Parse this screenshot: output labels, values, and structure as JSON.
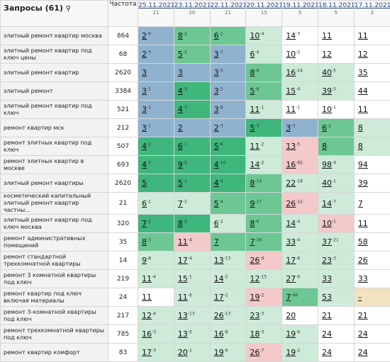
{
  "header": {
    "title": "Запросы (61)",
    "freq": "Частота",
    "dates": [
      {
        "date": "25.11.2021",
        "count": 21
      },
      {
        "date": "23.11.2021",
        "count": 20
      },
      {
        "date": "22.11.2021",
        "count": 21
      },
      {
        "date": "20.11.2021",
        "count": 15
      },
      {
        "date": "19.11.2021",
        "count": 5
      },
      {
        "date": "18.11.2021",
        "count": 5
      },
      {
        "date": "17.11.2021",
        "count": 3
      }
    ]
  },
  "rows": [
    {
      "query": "элитный ремонт квартир москва",
      "freq": 864,
      "cells": [
        {
          "pos": 2,
          "delta": "-6",
          "color": "#8fb3cf"
        },
        {
          "pos": 8,
          "delta": "-2",
          "color": "#6cc794"
        },
        {
          "pos": 6,
          "delta": "-2",
          "color": "#6cc794"
        },
        {
          "pos": 10,
          "delta": "-4",
          "color": "#cdebd8"
        },
        {
          "pos": 14,
          "delta": "-3",
          "color": "#ffffff"
        },
        {
          "pos": 11,
          "color": "#ffffff"
        },
        {
          "pos": 11,
          "color": "#ffffff"
        }
      ]
    },
    {
      "query": "элитный ремонт квартир под ключ цены",
      "freq": 68,
      "cells": [
        {
          "pos": 2,
          "delta": "-3",
          "color": "#8fb3cf"
        },
        {
          "pos": 5,
          "delta": "-2",
          "color": "#6cc794"
        },
        {
          "pos": 3,
          "delta": "-3",
          "color": "#8fb3cf"
        },
        {
          "pos": 6,
          "delta": "-4",
          "color": "#cdebd8"
        },
        {
          "pos": 10,
          "delta": "-2",
          "color": "#ffffff"
        },
        {
          "pos": 12,
          "color": "#ffffff"
        },
        {
          "pos": 12,
          "color": "#ffffff"
        }
      ]
    },
    {
      "query": "элитный ремонт квартир",
      "freq": 2620,
      "cells": [
        {
          "pos": 3,
          "color": "#8fb3cf"
        },
        {
          "pos": 3,
          "color": "#8fb3cf"
        },
        {
          "pos": 3,
          "delta": "-5",
          "color": "#8fb3cf"
        },
        {
          "pos": 8,
          "delta": "-8",
          "color": "#6cc794"
        },
        {
          "pos": 16,
          "delta": "-24",
          "color": "#cdebd8"
        },
        {
          "pos": 40,
          "delta": "-5",
          "color": "#cdebd8"
        },
        {
          "pos": 35,
          "color": "#ffffff"
        }
      ]
    },
    {
      "query": "элитный ремонт",
      "freq": 3384,
      "cells": [
        {
          "pos": 3,
          "delta": "-1",
          "color": "#8fb3cf"
        },
        {
          "pos": 4,
          "delta": "-3",
          "color": "#3fb67b"
        },
        {
          "pos": 3,
          "delta": "-2",
          "color": "#8fb3cf"
        },
        {
          "pos": 5,
          "delta": "-8",
          "color": "#6cc794"
        },
        {
          "pos": 15,
          "delta": "-4",
          "color": "#cdebd8"
        },
        {
          "pos": 39,
          "delta": "-5",
          "color": "#cdebd8"
        },
        {
          "pos": 44,
          "color": "#ffffff"
        }
      ]
    },
    {
      "query": "элитный ремонт квартир под ключ",
      "freq": 521,
      "cells": [
        {
          "pos": 3,
          "delta": "-1",
          "color": "#8fb3cf"
        },
        {
          "pos": 4,
          "delta": "-3",
          "color": "#3fb67b"
        },
        {
          "pos": 3,
          "delta": "-8",
          "color": "#8fb3cf"
        },
        {
          "pos": 11,
          "delta": "-1",
          "color": "#cdebd8"
        },
        {
          "pos": 11,
          "delta": "-1",
          "color": "#ffffff"
        },
        {
          "pos": 10,
          "delta": "-1",
          "color": "#ffffff"
        },
        {
          "pos": 11,
          "color": "#ffffff"
        }
      ]
    },
    {
      "query": "ремонт квартир мск",
      "freq": 212,
      "cells": [
        {
          "pos": 3,
          "delta": "-1",
          "color": "#8fb3cf"
        },
        {
          "pos": 2,
          "color": "#8fb3cf"
        },
        {
          "pos": 2,
          "delta": "-3",
          "color": "#8fb3cf"
        },
        {
          "pos": 5,
          "delta": "-3",
          "color": "#3fb67b"
        },
        {
          "pos": 3,
          "delta": "-3",
          "color": "#8fb3cf"
        },
        {
          "pos": 6,
          "delta": "-2",
          "color": "#6cc794"
        },
        {
          "pos": 8,
          "color": "#cdebd8"
        }
      ]
    },
    {
      "query": "ремонт элитных квартир под ключ",
      "freq": 507,
      "cells": [
        {
          "pos": 4,
          "delta": "-2",
          "color": "#3fb67b"
        },
        {
          "pos": 6,
          "delta": "-1",
          "color": "#3fb67b"
        },
        {
          "pos": 5,
          "delta": "-6",
          "color": "#3fb67b"
        },
        {
          "pos": 11,
          "delta": "-2",
          "color": "#cdebd8"
        },
        {
          "pos": 13,
          "delta": "-5",
          "color": "#f3c9c9"
        },
        {
          "pos": 8,
          "color": "#6cc794"
        },
        {
          "pos": 8,
          "color": "#cdebd8"
        }
      ]
    },
    {
      "query": "ремонт элитных квартир в москве",
      "freq": 693,
      "cells": [
        {
          "pos": 4,
          "delta": "-5",
          "color": "#3fb67b"
        },
        {
          "pos": 9,
          "delta": "-5",
          "color": "#3fb67b"
        },
        {
          "pos": 4,
          "delta": "-10",
          "color": "#3fb67b"
        },
        {
          "pos": 14,
          "delta": "-2",
          "color": "#cdebd8"
        },
        {
          "pos": 16,
          "delta": "-82",
          "color": "#f3c9c9"
        },
        {
          "pos": 98,
          "delta": "-4",
          "color": "#cdebd8"
        },
        {
          "pos": 94,
          "color": "#ffffff"
        }
      ]
    },
    {
      "query": "элитный ремонт квартиры",
      "freq": 2620,
      "cells": [
        {
          "pos": 5,
          "color": "#3fb67b"
        },
        {
          "pos": 5,
          "delta": "-1",
          "color": "#3fb67b"
        },
        {
          "pos": 4,
          "delta": "-4",
          "color": "#3fb67b"
        },
        {
          "pos": 8,
          "delta": "-14",
          "color": "#6cc794"
        },
        {
          "pos": 22,
          "delta": "-18",
          "color": "#cdebd8"
        },
        {
          "pos": 40,
          "delta": "-1",
          "color": "#cdebd8"
        },
        {
          "pos": 39,
          "color": "#ffffff"
        }
      ]
    },
    {
      "query": "косметический капитальный элитный ремонт квартир частны...",
      "freq": 21,
      "cells": [
        {
          "pos": 6,
          "delta": "-1",
          "color": "#cdebd8"
        },
        {
          "pos": 7,
          "delta": "-2",
          "color": "#cdebd8"
        },
        {
          "pos": 5,
          "delta": "-4",
          "color": "#6cc794"
        },
        {
          "pos": 9,
          "delta": "-17",
          "color": "#6cc794"
        },
        {
          "pos": 26,
          "delta": "-12",
          "color": "#f3c9c9"
        },
        {
          "pos": 14,
          "delta": "-7",
          "color": "#cdebd8"
        },
        {
          "pos": 7,
          "color": "#ffffff"
        }
      ]
    },
    {
      "query": "элитный ремонт квартир под ключ москва",
      "freq": 320,
      "cells": [
        {
          "pos": 7,
          "delta": "-1",
          "color": "#3fb67b"
        },
        {
          "pos": 8,
          "delta": "-2",
          "color": "#3fb67b"
        },
        {
          "pos": 6,
          "delta": "-2",
          "color": "#cdebd8"
        },
        {
          "pos": 8,
          "delta": "-6",
          "color": "#6cc794"
        },
        {
          "pos": 14,
          "delta": "-4",
          "color": "#cdebd8"
        },
        {
          "pos": 10,
          "delta": "-1",
          "color": "#f3c9c9"
        },
        {
          "pos": 11,
          "color": "#ffffff"
        }
      ]
    },
    {
      "query": "ремонт административных помещений",
      "freq": 35,
      "cells": [
        {
          "pos": 8,
          "delta": "-3",
          "color": "#6cc794"
        },
        {
          "pos": 11,
          "delta": "-4",
          "color": "#f3c9c9"
        },
        {
          "pos": 7,
          "color": "#6cc794"
        },
        {
          "pos": 7,
          "delta": "-26",
          "color": "#6cc794"
        },
        {
          "pos": 33,
          "delta": "-4",
          "color": "#cdebd8"
        },
        {
          "pos": 37,
          "delta": "-21",
          "color": "#cdebd8"
        },
        {
          "pos": 58,
          "color": "#ffffff"
        }
      ]
    },
    {
      "query": "ремонт стандартной трехкомнатной квартиры",
      "freq": 14,
      "cells": [
        {
          "pos": 9,
          "delta": "-8",
          "color": "#cdebd8"
        },
        {
          "pos": 17,
          "delta": "-4",
          "color": "#cdebd8"
        },
        {
          "pos": 13,
          "delta": "-13",
          "color": "#cdebd8"
        },
        {
          "pos": 26,
          "delta": "-9",
          "color": "#f3c9c9"
        },
        {
          "pos": 17,
          "delta": "-6",
          "color": "#cdebd8"
        },
        {
          "pos": 23,
          "delta": "-3",
          "color": "#cdebd8"
        },
        {
          "pos": 26,
          "color": "#ffffff"
        }
      ]
    },
    {
      "query": "ремонт 3 комнатной квартиры под ключ",
      "freq": 219,
      "cells": [
        {
          "pos": 11,
          "delta": "-4",
          "color": "#cdebd8"
        },
        {
          "pos": 15,
          "delta": "-1",
          "color": "#cdebd8"
        },
        {
          "pos": 14,
          "delta": "-2",
          "color": "#cdebd8"
        },
        {
          "pos": 12,
          "delta": "-15",
          "color": "#cdebd8"
        },
        {
          "pos": 27,
          "delta": "-6",
          "color": "#cdebd8"
        },
        {
          "pos": 33,
          "color": "#cdebd8"
        },
        {
          "pos": 33,
          "color": "#ffffff"
        }
      ]
    },
    {
      "query": "ремонт квартир под ключ включая материалы",
      "freq": 24,
      "cells": [
        {
          "pos": 11,
          "color": "#ffffff"
        },
        {
          "pos": 11,
          "delta": "-6",
          "color": "#cdebd8"
        },
        {
          "pos": 17,
          "delta": "-2",
          "color": "#cdebd8"
        },
        {
          "pos": 19,
          "delta": "-2",
          "color": "#f3c9c9"
        },
        {
          "pos": 7,
          "delta": "-46",
          "color": "#6cc794"
        },
        {
          "pos": 53,
          "color": "#cdebd8"
        },
        {
          "pos": "–",
          "color": "#f3e2c0"
        }
      ]
    },
    {
      "query": "ремонт 3-комнатной квартиры под ключ",
      "freq": 217,
      "cells": [
        {
          "pos": 12,
          "delta": "-4",
          "color": "#cdebd8"
        },
        {
          "pos": 13,
          "delta": "-13",
          "color": "#cdebd8"
        },
        {
          "pos": 26,
          "delta": "-13",
          "color": "#cdebd8"
        },
        {
          "pos": 23,
          "delta": "-3",
          "color": "#cdebd8"
        },
        {
          "pos": 20,
          "color": "#ffffff"
        },
        {
          "pos": 21,
          "color": "#ffffff"
        },
        {
          "pos": 21,
          "color": "#ffffff"
        }
      ]
    },
    {
      "query": "ремонт трехкомнатной квартиры под ключ",
      "freq": 785,
      "cells": [
        {
          "pos": 16,
          "delta": "-3",
          "color": "#cdebd8"
        },
        {
          "pos": 13,
          "delta": "-5",
          "color": "#cdebd8"
        },
        {
          "pos": 16,
          "delta": "-8",
          "color": "#cdebd8"
        },
        {
          "pos": 18,
          "delta": "-3",
          "color": "#cdebd8"
        },
        {
          "pos": 19,
          "delta": "-6",
          "color": "#cdebd8"
        },
        {
          "pos": 24,
          "color": "#ffffff"
        },
        {
          "pos": 24,
          "color": "#ffffff"
        }
      ]
    },
    {
      "query": "ремонт квартир комфорт",
      "freq": 83,
      "cells": [
        {
          "pos": 17,
          "delta": "-3",
          "color": "#cdebd8"
        },
        {
          "pos": 20,
          "delta": "-1",
          "color": "#cdebd8"
        },
        {
          "pos": 19,
          "delta": "-6",
          "color": "#cdebd8"
        },
        {
          "pos": 26,
          "delta": "-7",
          "color": "#f3c9c9"
        },
        {
          "pos": 19,
          "delta": "-2",
          "color": "#cdebd8"
        },
        {
          "pos": 24,
          "color": "#ffffff"
        },
        {
          "pos": 24,
          "color": "#ffffff"
        }
      ]
    }
  ]
}
